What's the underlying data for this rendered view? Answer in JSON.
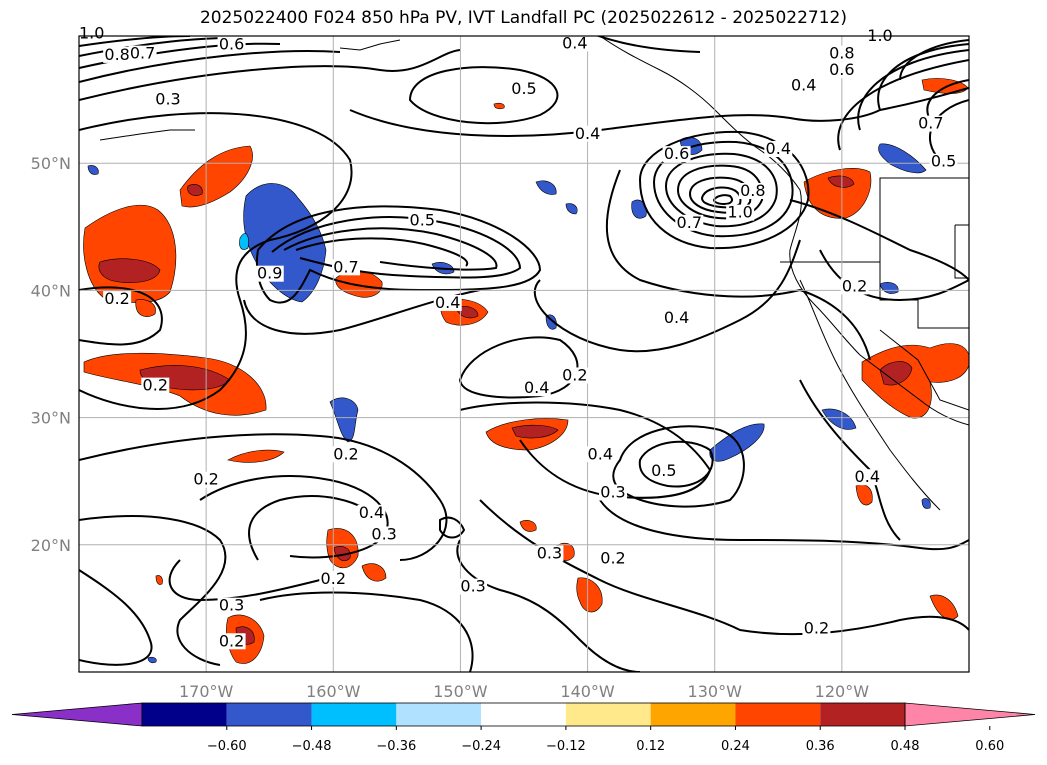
{
  "title": "2025022400 F024 850 hPa PV, IVT Landfall PC (2025022612 - 2025022712)",
  "map": {
    "projection": "equirectangular",
    "lat_range": [
      10,
      60
    ],
    "lon_range": [
      -180,
      -110
    ],
    "lat_ticks": [
      {
        "lat": 50,
        "label": "50°N"
      },
      {
        "lat": 40,
        "label": "40°N"
      },
      {
        "lat": 30,
        "label": "30°N"
      },
      {
        "lat": 20,
        "label": "20°N"
      }
    ],
    "lon_ticks": [
      {
        "lon": -170,
        "label": "170°W"
      },
      {
        "lon": -160,
        "label": "160°W"
      },
      {
        "lon": -150,
        "label": "150°W"
      },
      {
        "lon": -140,
        "label": "140°W"
      },
      {
        "lon": -130,
        "label": "130°W"
      },
      {
        "lon": -120,
        "label": "120°W"
      }
    ],
    "gridlines": true,
    "contour_labels": [
      {
        "text": "1.0",
        "lon": -179,
        "lat": 59.9
      },
      {
        "text": "0.8",
        "lon": -177,
        "lat": 58.2
      },
      {
        "text": "0.7",
        "lon": -175,
        "lat": 58.3
      },
      {
        "text": "0.6",
        "lon": -168,
        "lat": 59.0
      },
      {
        "text": "0.3",
        "lon": -173,
        "lat": 54.7
      },
      {
        "text": "0.4",
        "lon": -141,
        "lat": 59.1
      },
      {
        "text": "0.5",
        "lon": -145,
        "lat": 55.5
      },
      {
        "text": "0.4",
        "lon": -140,
        "lat": 52.0
      },
      {
        "text": "1.0",
        "lon": -117,
        "lat": 59.7
      },
      {
        "text": "0.8",
        "lon": -120,
        "lat": 58.3
      },
      {
        "text": "0.6",
        "lon": -120,
        "lat": 57.0
      },
      {
        "text": "0.4",
        "lon": -123,
        "lat": 55.8
      },
      {
        "text": "0.7",
        "lon": -113,
        "lat": 52.8
      },
      {
        "text": "0.4",
        "lon": -125,
        "lat": 50.8
      },
      {
        "text": "0.5",
        "lon": -112,
        "lat": 49.8
      },
      {
        "text": "0.6",
        "lon": -133,
        "lat": 50.4
      },
      {
        "text": "0.8",
        "lon": -127,
        "lat": 47.5
      },
      {
        "text": "1.0",
        "lon": -128,
        "lat": 45.8
      },
      {
        "text": "0.7",
        "lon": -132,
        "lat": 45.0
      },
      {
        "text": "0.5",
        "lon": -153,
        "lat": 45.2
      },
      {
        "text": "0.9",
        "lon": -165,
        "lat": 41.0
      },
      {
        "text": "0.7",
        "lon": -159,
        "lat": 41.5
      },
      {
        "text": "0.4",
        "lon": -151,
        "lat": 38.7
      },
      {
        "text": "0.2",
        "lon": -177,
        "lat": 39.0
      },
      {
        "text": "0.4",
        "lon": -133,
        "lat": 37.5
      },
      {
        "text": "0.2",
        "lon": -119,
        "lat": 40.0
      },
      {
        "text": "0.2",
        "lon": -174,
        "lat": 32.2
      },
      {
        "text": "0.2",
        "lon": -141,
        "lat": 33.0
      },
      {
        "text": "0.4",
        "lon": -144,
        "lat": 32.0
      },
      {
        "text": "0.2",
        "lon": -159,
        "lat": 26.8
      },
      {
        "text": "0.2",
        "lon": -170,
        "lat": 24.8
      },
      {
        "text": "0.4",
        "lon": -139,
        "lat": 26.8
      },
      {
        "text": "0.5",
        "lon": -134,
        "lat": 25.5
      },
      {
        "text": "0.3",
        "lon": -138,
        "lat": 23.8
      },
      {
        "text": "0.4",
        "lon": -118,
        "lat": 25.0
      },
      {
        "text": "0.4",
        "lon": -157,
        "lat": 22.2
      },
      {
        "text": "0.3",
        "lon": -156,
        "lat": 20.5
      },
      {
        "text": "0.2",
        "lon": -160,
        "lat": 17.0
      },
      {
        "text": "0.3",
        "lon": -149,
        "lat": 16.4
      },
      {
        "text": "0.3",
        "lon": -143,
        "lat": 19.0
      },
      {
        "text": "0.2",
        "lon": -138,
        "lat": 18.6
      },
      {
        "text": "0.3",
        "lon": -168,
        "lat": 14.9
      },
      {
        "text": "0.2",
        "lon": -168,
        "lat": 12.1
      },
      {
        "text": "0.2",
        "lon": -122,
        "lat": 13.1
      }
    ]
  },
  "colorbar": {
    "colors": [
      "#8b2fc9",
      "#00008b",
      "#3358cc",
      "#00bfff",
      "#b0e2ff",
      "#ffffff",
      "#ffe98a",
      "#ffa500",
      "#ff4500",
      "#b22222",
      "#ff85a8"
    ],
    "tick_labels": [
      "−0.60",
      "−0.48",
      "−0.36",
      "−0.24",
      "−0.12",
      "0.12",
      "0.24",
      "0.36",
      "0.48",
      "0.60"
    ]
  }
}
